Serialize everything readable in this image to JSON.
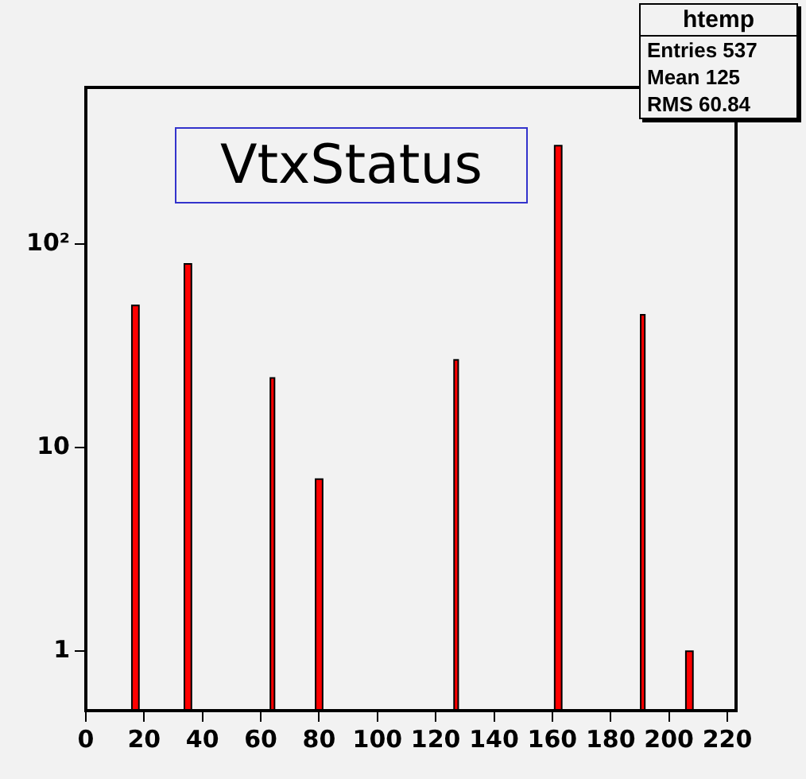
{
  "chart_data": {
    "type": "histogram",
    "title": "VtxStatus",
    "bins": [
      15.8,
      18.2,
      33.8,
      36.2,
      63.3,
      64.7,
      78.8,
      81.2,
      126.3,
      127.7,
      160.8,
      163.2,
      190.3,
      191.7,
      205.8,
      208.2
    ],
    "values": [
      50,
      null,
      80,
      null,
      22,
      null,
      7,
      null,
      27,
      null,
      305,
      null,
      45,
      null,
      1
    ],
    "color": "#ff0000",
    "xlim": [
      0,
      223
    ],
    "xticks": [
      0,
      20,
      40,
      60,
      80,
      100,
      120,
      140,
      160,
      180,
      200,
      220
    ],
    "ylim": [
      0.51,
      590
    ],
    "yticks": [
      1,
      10,
      {
        "value": 100,
        "label": "10²"
      }
    ],
    "log": "y",
    "grid": false,
    "legend": false,
    "annotations": [
      "htemp",
      "Entries 537",
      "Mean 125",
      "RMS 60.84"
    ]
  }
}
